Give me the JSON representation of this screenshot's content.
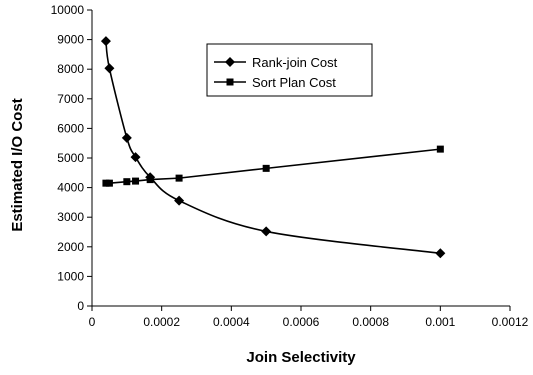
{
  "chart_data": {
    "type": "line",
    "xlabel": "Join Selectivity",
    "ylabel": "Estimated I/O Cost",
    "xlim": [
      0,
      0.0012
    ],
    "ylim": [
      0,
      10000
    ],
    "x_ticks": [
      "0",
      "0.0002",
      "0.0004",
      "0.0006",
      "0.0008",
      "0.001",
      "0.0012"
    ],
    "x_tick_values": [
      0,
      0.0002,
      0.0004,
      0.0006,
      0.0008,
      0.001,
      0.0012
    ],
    "y_ticks": [
      "0",
      "1000",
      "2000",
      "3000",
      "4000",
      "5000",
      "6000",
      "7000",
      "8000",
      "9000",
      "10000"
    ],
    "y_tick_values": [
      0,
      1000,
      2000,
      3000,
      4000,
      5000,
      6000,
      7000,
      8000,
      9000,
      10000
    ],
    "grid": false,
    "legend_position": "top-center",
    "series": [
      {
        "name": "Rank-join Cost",
        "marker": "diamond",
        "color": "#000000",
        "x": [
          4e-05,
          5e-05,
          0.0001,
          0.000125,
          0.000167,
          0.00025,
          0.0005,
          0.001
        ],
        "y": [
          8950,
          8030,
          5680,
          5030,
          4350,
          3560,
          2520,
          1780
        ]
      },
      {
        "name": "Sort Plan Cost",
        "marker": "square",
        "color": "#000000",
        "x": [
          4e-05,
          5e-05,
          0.0001,
          0.000125,
          0.000167,
          0.00025,
          0.0005,
          0.001
        ],
        "y": [
          4150,
          4150,
          4200,
          4220,
          4270,
          4320,
          4650,
          5300
        ]
      }
    ]
  }
}
